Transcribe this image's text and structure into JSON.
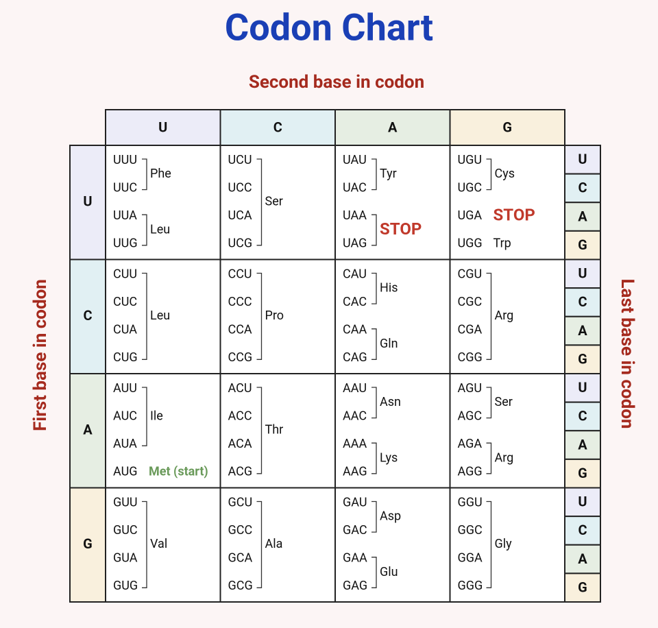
{
  "title": "Codon Chart",
  "second_label": "Second base in codon",
  "first_label": "First base in codon",
  "last_label": "Last base in codon",
  "columns": [
    "U",
    "C",
    "A",
    "G"
  ],
  "base_colors": [
    "#ececf8",
    "#e1f0f3",
    "#e6eee3",
    "#f9f0dd"
  ],
  "stop_color": "#c0392b",
  "start_color": "#6a9a5a",
  "rows": [
    {
      "base": "U",
      "third": [
        "U",
        "C",
        "A",
        "G"
      ],
      "cells": [
        {
          "groups": [
            {
              "codons": [
                "UUU",
                "UUC"
              ],
              "label": "Phe"
            },
            {
              "codons": [
                "UUA",
                "UUG"
              ],
              "label": "Leu"
            }
          ]
        },
        {
          "groups": [
            {
              "codons": [
                "UCU",
                "UCC",
                "UCA",
                "UCG"
              ],
              "label": "Ser"
            }
          ]
        },
        {
          "groups": [
            {
              "codons": [
                "UAU",
                "UAC"
              ],
              "label": "Tyr"
            },
            {
              "codons": [
                "UAA",
                "UAG"
              ],
              "label": "STOP",
              "stop": true
            }
          ]
        },
        {
          "groups": [
            {
              "codons": [
                "UGU",
                "UGC"
              ],
              "label": "Cys"
            },
            {
              "codons": [
                "UGA"
              ],
              "label": "STOP",
              "stop": true
            },
            {
              "codons": [
                "UGG"
              ],
              "label": "Trp"
            }
          ]
        }
      ]
    },
    {
      "base": "C",
      "third": [
        "U",
        "C",
        "A",
        "G"
      ],
      "cells": [
        {
          "groups": [
            {
              "codons": [
                "CUU",
                "CUC",
                "CUA",
                "CUG"
              ],
              "label": "Leu"
            }
          ]
        },
        {
          "groups": [
            {
              "codons": [
                "CCU",
                "CCC",
                "CCA",
                "CCG"
              ],
              "label": "Pro"
            }
          ]
        },
        {
          "groups": [
            {
              "codons": [
                "CAU",
                "CAC"
              ],
              "label": "His"
            },
            {
              "codons": [
                "CAA",
                "CAG"
              ],
              "label": "Gln"
            }
          ]
        },
        {
          "groups": [
            {
              "codons": [
                "CGU",
                "CGC",
                "CGA",
                "CGG"
              ],
              "label": "Arg"
            }
          ]
        }
      ]
    },
    {
      "base": "A",
      "third": [
        "U",
        "C",
        "A",
        "G"
      ],
      "cells": [
        {
          "groups": [
            {
              "codons": [
                "AUU",
                "AUC",
                "AUA"
              ],
              "label": "Ile"
            },
            {
              "codons": [
                "AUG"
              ],
              "label": "Met (start)",
              "start": true
            }
          ]
        },
        {
          "groups": [
            {
              "codons": [
                "ACU",
                "ACC",
                "ACA",
                "ACG"
              ],
              "label": "Thr"
            }
          ]
        },
        {
          "groups": [
            {
              "codons": [
                "AAU",
                "AAC"
              ],
              "label": "Asn"
            },
            {
              "codons": [
                "AAA",
                "AAG"
              ],
              "label": "Lys"
            }
          ]
        },
        {
          "groups": [
            {
              "codons": [
                "AGU",
                "AGC"
              ],
              "label": "Ser"
            },
            {
              "codons": [
                "AGA",
                "AGG"
              ],
              "label": "Arg"
            }
          ]
        }
      ]
    },
    {
      "base": "G",
      "third": [
        "U",
        "C",
        "A",
        "G"
      ],
      "cells": [
        {
          "groups": [
            {
              "codons": [
                "GUU",
                "GUC",
                "GUA",
                "GUG"
              ],
              "label": "Val"
            }
          ]
        },
        {
          "groups": [
            {
              "codons": [
                "GCU",
                "GCC",
                "GCA",
                "GCG"
              ],
              "label": "Ala"
            }
          ]
        },
        {
          "groups": [
            {
              "codons": [
                "GAU",
                "GAC"
              ],
              "label": "Asp"
            },
            {
              "codons": [
                "GAA",
                "GAG"
              ],
              "label": "Glu"
            }
          ]
        },
        {
          "groups": [
            {
              "codons": [
                "GGU",
                "GGC",
                "GGA",
                "GGG"
              ],
              "label": "Gly"
            }
          ]
        }
      ]
    }
  ]
}
